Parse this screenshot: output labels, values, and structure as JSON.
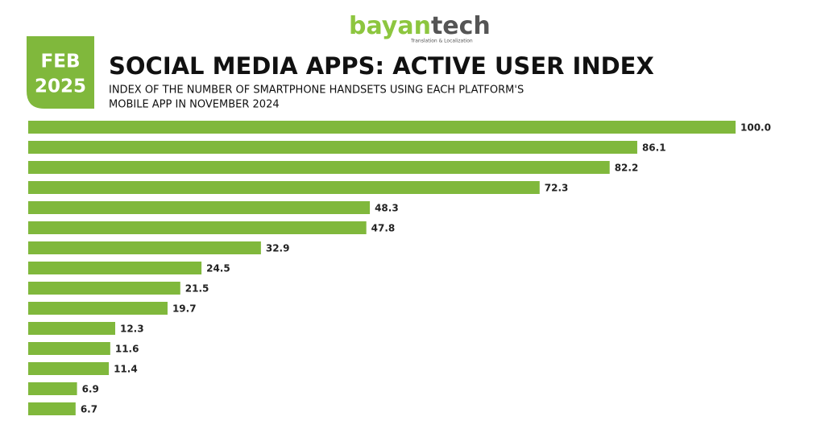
{
  "brand": {
    "name_a": "bayan",
    "name_b": "tech",
    "tagline": "Translation & Localization"
  },
  "badge": {
    "line1": "FEB",
    "line2": "2025"
  },
  "chart_data": {
    "type": "hbar",
    "title": "SOCIAL MEDIA APPS: ACTIVE USER INDEX",
    "subtitle_lines": [
      "INDEX OF THE NUMBER OF SMARTPHONE HANDSETS USING EACH PLATFORM'S",
      "MOBILE APP IN NOVEMBER 2024"
    ],
    "values": [
      100,
      86.1,
      82.2,
      72.3,
      48.3,
      47.8,
      32.9,
      24.5,
      21.5,
      19.7,
      12.3,
      11.6,
      11.4,
      6.9,
      6.7
    ],
    "value_labels": [
      "100.0",
      "86.1",
      "82.2",
      "72.3",
      "48.3",
      "47.8",
      "32.9",
      "24.5",
      "21.5",
      "19.7",
      "12.3",
      "11.6",
      "11.4",
      "6.9",
      "6.7"
    ],
    "color": "#80b83c"
  }
}
